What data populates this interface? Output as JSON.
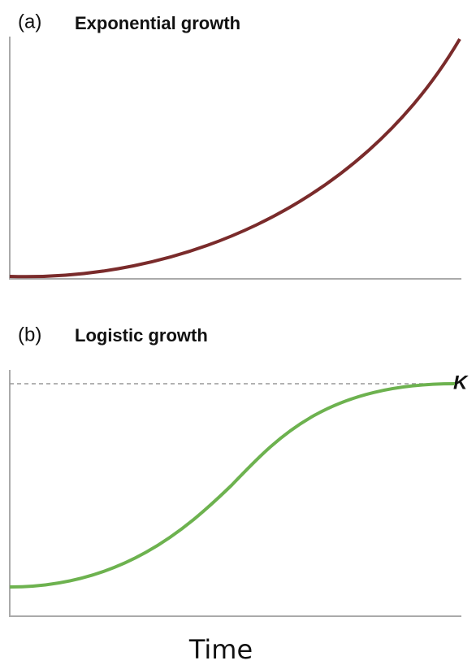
{
  "panel_a": {
    "label": "(a)",
    "title": "Exponential growth"
  },
  "panel_b": {
    "label": "(b)",
    "title": "Logistic growth",
    "capacity_label": "K"
  },
  "x_axis_label": "Time"
}
